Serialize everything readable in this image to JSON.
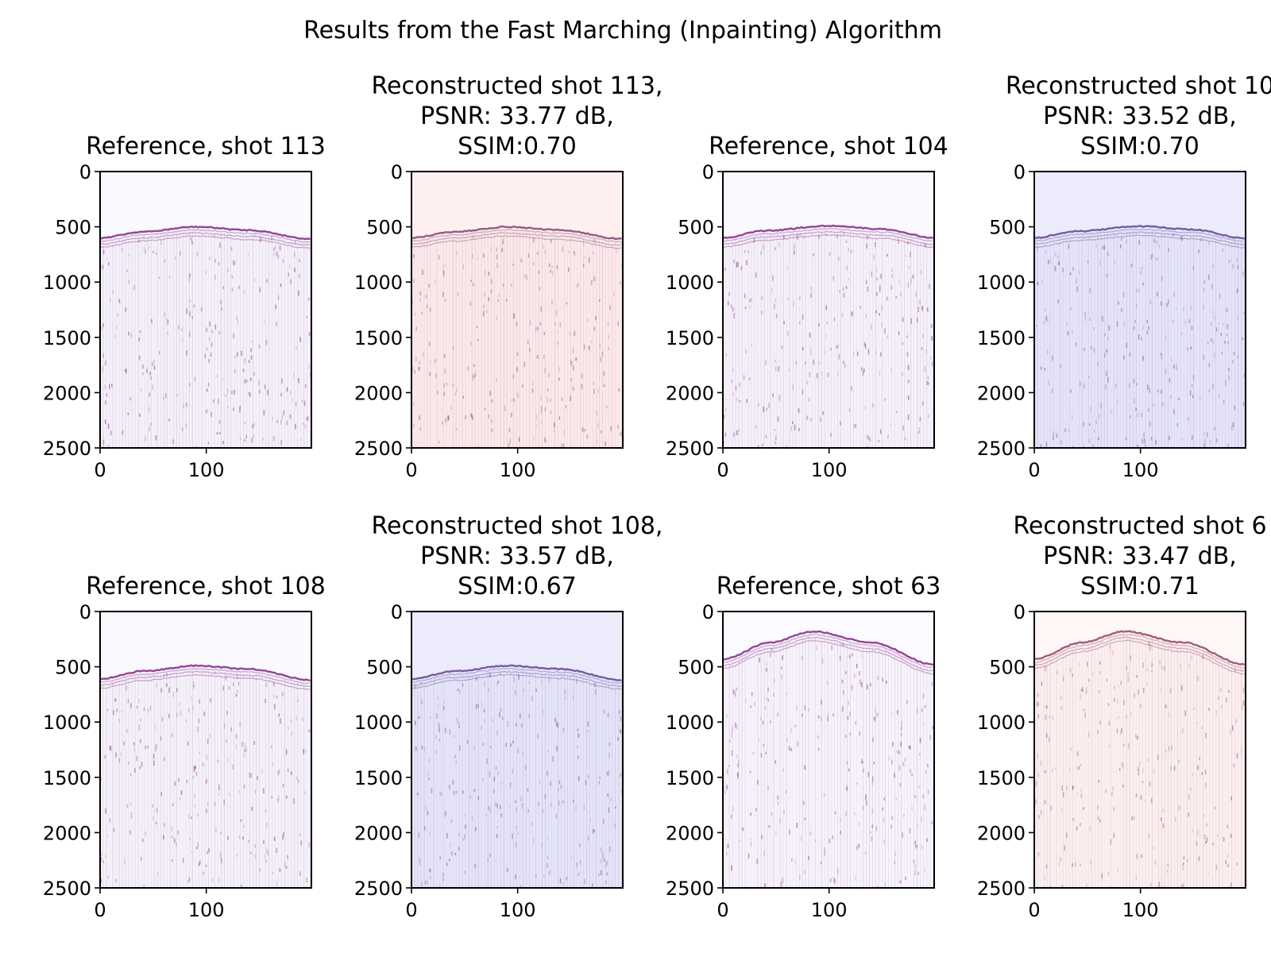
{
  "figure": {
    "title": "Results from the Fast Marching (Inpainting) Algorithm"
  },
  "chart_data": [
    {
      "type": "heatmap",
      "title_lines": [
        "Reference, shot 113"
      ],
      "x_ticks": [
        0,
        100
      ],
      "y_ticks": [
        0,
        500,
        1000,
        1500,
        2000,
        2500
      ],
      "xlim": [
        0,
        199
      ],
      "ylim": [
        2500,
        0
      ],
      "arrival_curve": [
        [
          0,
          600
        ],
        [
          40,
          545
        ],
        [
          90,
          500
        ],
        [
          140,
          530
        ],
        [
          199,
          610
        ]
      ],
      "background_color": "#f9f9fe",
      "trace_color": "#7a1a7a",
      "colormap": "seismic"
    },
    {
      "type": "heatmap",
      "title_lines": [
        "Reconstructed shot 113,",
        "PSNR: 33.77 dB,",
        "SSIM:0.70"
      ],
      "psnr_db": 33.77,
      "ssim": 0.7,
      "x_ticks": [
        0,
        100
      ],
      "y_ticks": [
        0,
        500,
        1000,
        1500,
        2000,
        2500
      ],
      "xlim": [
        0,
        199
      ],
      "ylim": [
        2500,
        0
      ],
      "arrival_curve": [
        [
          0,
          600
        ],
        [
          40,
          545
        ],
        [
          90,
          500
        ],
        [
          140,
          530
        ],
        [
          199,
          610
        ]
      ],
      "background_color": "#fff0f0",
      "trace_color": "#7a3a6a",
      "colormap": "seismic"
    },
    {
      "type": "heatmap",
      "title_lines": [
        "Reference, shot 104"
      ],
      "x_ticks": [
        0,
        100
      ],
      "y_ticks": [
        0,
        500,
        1000,
        1500,
        2000,
        2500
      ],
      "xlim": [
        0,
        199
      ],
      "ylim": [
        2500,
        0
      ],
      "arrival_curve": [
        [
          0,
          600
        ],
        [
          40,
          535
        ],
        [
          100,
          490
        ],
        [
          150,
          520
        ],
        [
          199,
          600
        ]
      ],
      "background_color": "#f9f9fe",
      "trace_color": "#7a1a7a",
      "colormap": "seismic"
    },
    {
      "type": "heatmap",
      "title_lines": [
        "Reconstructed shot 10",
        "PSNR: 33.52 dB,",
        "SSIM:0.70"
      ],
      "psnr_db": 33.52,
      "ssim": 0.7,
      "x_ticks": [
        0,
        100
      ],
      "y_ticks": [
        0,
        500,
        1000,
        1500,
        2000,
        2500
      ],
      "xlim": [
        0,
        199
      ],
      "ylim": [
        2500,
        0
      ],
      "arrival_curve": [
        [
          0,
          600
        ],
        [
          40,
          540
        ],
        [
          100,
          495
        ],
        [
          150,
          525
        ],
        [
          199,
          605
        ]
      ],
      "background_color": "#ebebfc",
      "trace_color": "#5a3a8a",
      "colormap": "seismic"
    },
    {
      "type": "heatmap",
      "title_lines": [
        "Reference, shot 108"
      ],
      "x_ticks": [
        0,
        100
      ],
      "y_ticks": [
        0,
        500,
        1000,
        1500,
        2000,
        2500
      ],
      "xlim": [
        0,
        199
      ],
      "ylim": [
        2500,
        0
      ],
      "arrival_curve": [
        [
          0,
          610
        ],
        [
          40,
          540
        ],
        [
          90,
          490
        ],
        [
          140,
          520
        ],
        [
          199,
          620
        ]
      ],
      "background_color": "#f9f9fe",
      "trace_color": "#7a1a7a",
      "colormap": "seismic"
    },
    {
      "type": "heatmap",
      "title_lines": [
        "Reconstructed shot 108,",
        "PSNR: 33.57 dB,",
        "SSIM:0.67"
      ],
      "psnr_db": 33.57,
      "ssim": 0.67,
      "x_ticks": [
        0,
        100
      ],
      "y_ticks": [
        0,
        500,
        1000,
        1500,
        2000,
        2500
      ],
      "xlim": [
        0,
        199
      ],
      "ylim": [
        2500,
        0
      ],
      "arrival_curve": [
        [
          0,
          610
        ],
        [
          40,
          540
        ],
        [
          90,
          490
        ],
        [
          140,
          520
        ],
        [
          199,
          620
        ]
      ],
      "background_color": "#ebebfc",
      "trace_color": "#5a3a8a",
      "colormap": "seismic"
    },
    {
      "type": "heatmap",
      "title_lines": [
        "Reference, shot 63"
      ],
      "x_ticks": [
        0,
        100
      ],
      "y_ticks": [
        0,
        500,
        1000,
        1500,
        2000,
        2500
      ],
      "xlim": [
        0,
        199
      ],
      "ylim": [
        2500,
        0
      ],
      "arrival_curve": [
        [
          0,
          430
        ],
        [
          45,
          280
        ],
        [
          85,
          180
        ],
        [
          140,
          280
        ],
        [
          199,
          480
        ]
      ],
      "background_color": "#fbfbff",
      "trace_color": "#7a1a7a",
      "colormap": "seismic"
    },
    {
      "type": "heatmap",
      "title_lines": [
        "Reconstructed shot 6",
        "PSNR: 33.47 dB,",
        "SSIM:0.71"
      ],
      "psnr_db": 33.47,
      "ssim": 0.71,
      "x_ticks": [
        0,
        100
      ],
      "y_ticks": [
        0,
        500,
        1000,
        1500,
        2000,
        2500
      ],
      "xlim": [
        0,
        199
      ],
      "ylim": [
        2500,
        0
      ],
      "arrival_curve": [
        [
          0,
          430
        ],
        [
          45,
          280
        ],
        [
          85,
          180
        ],
        [
          140,
          280
        ],
        [
          199,
          480
        ]
      ],
      "background_color": "#fff6f6",
      "trace_color": "#8a3a5a",
      "colormap": "seismic"
    }
  ]
}
